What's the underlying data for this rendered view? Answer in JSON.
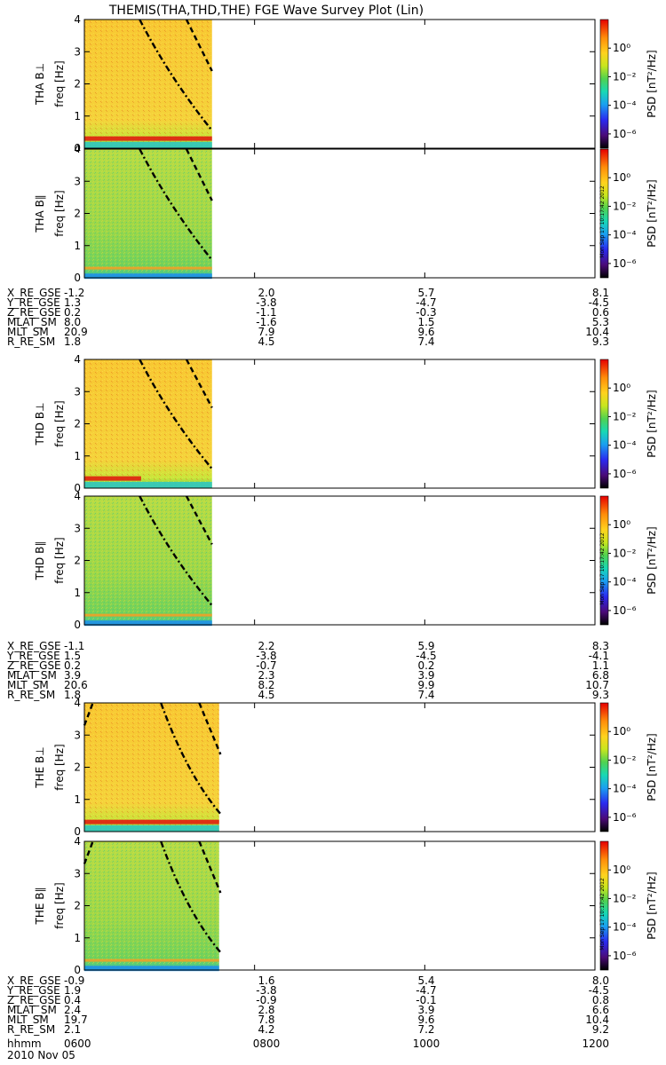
{
  "title": "THEMIS(THA,THD,THE) FGE Wave Survey Plot (Lin)",
  "stamp": "Mon Sep 17 10:17:42 2012",
  "colors": {
    "background": "#ffffff",
    "axis": "#000000",
    "curve": "#000000"
  },
  "colorbar": {
    "label": "PSD [nT²/Hz]",
    "scale": "log",
    "range": [
      1e-07,
      100
    ],
    "ticks": [
      {
        "value": 1,
        "label": "10⁰"
      },
      {
        "value": 0.01,
        "label": "10⁻²"
      },
      {
        "value": 0.0001,
        "label": "10⁻⁴"
      },
      {
        "value": 1e-06,
        "label": "10⁻⁶"
      }
    ],
    "colormap": [
      "#000000",
      "#4b0a78",
      "#2a2af0",
      "#1aa0f0",
      "#18d8b4",
      "#50d250",
      "#c8e61e",
      "#ffd21e",
      "#ff8c0a",
      "#e60000"
    ]
  },
  "chart_data": [
    {
      "type": "heatmap",
      "probe": "THA",
      "component": "perp",
      "ylabel_line1": "THA B⊥",
      "ylabel_line2": "freq [Hz]",
      "ylim": [
        0,
        4
      ],
      "yticks": [
        0,
        1,
        2,
        3,
        4
      ],
      "xlim": [
        "06:00",
        "12:00"
      ],
      "data_span": [
        "06:00",
        "07:30"
      ],
      "background_psd": "1e-1 to 1e0",
      "bands": [
        {
          "freq": 0.3,
          "psd": "1e1",
          "from": "06:00",
          "to": "07:30"
        },
        {
          "freq": 0.1,
          "psd": "1e-3",
          "from": "06:00",
          "to": "07:30"
        }
      ],
      "curves": [
        {
          "style": "dash-dot",
          "points": [
            [
              6.65,
              4.0
            ],
            [
              7.0,
              2.2
            ],
            [
              7.5,
              0.55
            ]
          ]
        },
        {
          "style": "dash",
          "points": [
            [
              7.2,
              4.0
            ],
            [
              7.5,
              2.4
            ]
          ]
        }
      ]
    },
    {
      "type": "heatmap",
      "probe": "THA",
      "component": "par",
      "ylabel_line1": "THA B∥",
      "ylabel_line2": "freq [Hz]",
      "ylim": [
        0,
        4
      ],
      "yticks": [
        0,
        1,
        2,
        3,
        4
      ],
      "xlim": [
        "06:00",
        "12:00"
      ],
      "data_span": [
        "06:00",
        "07:30"
      ],
      "background_psd": "1e-3 to 1e-2",
      "bands": [
        {
          "freq": 0.3,
          "psd": "1e-1",
          "from": "06:00",
          "to": "07:30"
        },
        {
          "freq": 0.05,
          "psd": "1e-5",
          "from": "06:00",
          "to": "07:30"
        }
      ],
      "curves": [
        {
          "style": "dash-dot",
          "points": [
            [
              6.65,
              4.0
            ],
            [
              7.0,
              2.2
            ],
            [
              7.5,
              0.55
            ]
          ]
        },
        {
          "style": "dash",
          "points": [
            [
              7.2,
              4.0
            ],
            [
              7.5,
              2.4
            ]
          ]
        }
      ]
    },
    {
      "type": "heatmap",
      "probe": "THD",
      "component": "perp",
      "ylabel_line1": "THD B⊥",
      "ylabel_line2": "freq [Hz]",
      "ylim": [
        0,
        4
      ],
      "yticks": [
        0,
        1,
        2,
        3,
        4
      ],
      "xlim": [
        "06:00",
        "12:00"
      ],
      "data_span": [
        "06:00",
        "07:30"
      ],
      "background_psd": "1e-1 to 1e0",
      "bands": [
        {
          "freq": 0.3,
          "psd": "1e1",
          "from": "06:00",
          "to": "06:40"
        },
        {
          "freq": 0.1,
          "psd": "1e-3",
          "from": "06:00",
          "to": "07:30"
        }
      ],
      "curves": [
        {
          "style": "dash-dot",
          "points": [
            [
              6.65,
              4.0
            ],
            [
              7.0,
              2.2
            ],
            [
              7.5,
              0.6
            ]
          ]
        },
        {
          "style": "dash",
          "points": [
            [
              7.2,
              4.0
            ],
            [
              7.5,
              2.5
            ]
          ]
        }
      ]
    },
    {
      "type": "heatmap",
      "probe": "THD",
      "component": "par",
      "ylabel_line1": "THD B∥",
      "ylabel_line2": "freq [Hz]",
      "ylim": [
        0,
        4
      ],
      "yticks": [
        0,
        1,
        2,
        3,
        4
      ],
      "xlim": [
        "06:00",
        "12:00"
      ],
      "data_span": [
        "06:00",
        "07:30"
      ],
      "background_psd": "1e-3 to 1e-2",
      "bands": [
        {
          "freq": 0.3,
          "psd": "1e-1",
          "from": "06:00",
          "to": "07:30"
        },
        {
          "freq": 0.05,
          "psd": "1e-5",
          "from": "06:00",
          "to": "07:30"
        }
      ],
      "curves": [
        {
          "style": "dash-dot",
          "points": [
            [
              6.65,
              4.0
            ],
            [
              7.0,
              2.2
            ],
            [
              7.5,
              0.6
            ]
          ]
        },
        {
          "style": "dash",
          "points": [
            [
              7.2,
              4.0
            ],
            [
              7.5,
              2.5
            ]
          ]
        }
      ]
    },
    {
      "type": "heatmap",
      "probe": "THE",
      "component": "perp",
      "ylabel_line1": "THE B⊥",
      "ylabel_line2": "freq [Hz]",
      "ylim": [
        0,
        4
      ],
      "yticks": [
        0,
        1,
        2,
        3,
        4
      ],
      "xlim": [
        "06:00",
        "12:00"
      ],
      "data_span": [
        "06:00",
        "07:35"
      ],
      "background_psd": "1e-1 to 1e0",
      "bands": [
        {
          "freq": 0.3,
          "psd": "1e1",
          "from": "06:00",
          "to": "07:35"
        },
        {
          "freq": 0.1,
          "psd": "1e-3",
          "from": "06:00",
          "to": "07:35"
        }
      ],
      "curves": [
        {
          "style": "dash-dot",
          "points": [
            [
              6.9,
              4.0
            ],
            [
              7.2,
              1.8
            ],
            [
              7.6,
              0.55
            ]
          ]
        },
        {
          "style": "dash",
          "points": [
            [
              7.35,
              4.0
            ],
            [
              7.6,
              2.4
            ]
          ]
        },
        {
          "style": "dash",
          "points": [
            [
              6.0,
              3.3
            ],
            [
              6.1,
              4.0
            ]
          ]
        }
      ]
    },
    {
      "type": "heatmap",
      "probe": "THE",
      "component": "par",
      "ylabel_line1": "THE B∥",
      "ylabel_line2": "freq [Hz]",
      "ylim": [
        0,
        4
      ],
      "yticks": [
        0,
        1,
        2,
        3,
        4
      ],
      "xlim": [
        "06:00",
        "12:00"
      ],
      "data_span": [
        "06:00",
        "07:35"
      ],
      "background_psd": "1e-3 to 1e-2",
      "bands": [
        {
          "freq": 0.3,
          "psd": "1e-1",
          "from": "06:00",
          "to": "07:35"
        },
        {
          "freq": 0.05,
          "psd": "1e-5",
          "from": "06:00",
          "to": "07:35"
        }
      ],
      "curves": [
        {
          "style": "dash-dot",
          "points": [
            [
              6.9,
              4.0
            ],
            [
              7.2,
              1.8
            ],
            [
              7.6,
              0.55
            ]
          ]
        },
        {
          "style": "dash",
          "points": [
            [
              7.35,
              4.0
            ],
            [
              7.6,
              2.4
            ]
          ]
        },
        {
          "style": "dash",
          "points": [
            [
              6.0,
              3.3
            ],
            [
              6.1,
              4.0
            ]
          ]
        }
      ]
    }
  ],
  "ephemeris": [
    {
      "probe": "THA",
      "rows": [
        {
          "name": "X_RE_GSE",
          "values": [
            "-1.2",
            "2.0",
            "5.7",
            "8.1"
          ]
        },
        {
          "name": "Y_RE_GSE",
          "values": [
            "1.3",
            "-3.8",
            "-4.7",
            "-4.5"
          ]
        },
        {
          "name": "Z_RE_GSE",
          "values": [
            "0.2",
            "-1.1",
            "-0.3",
            "0.6"
          ]
        },
        {
          "name": "MLAT_SM",
          "values": [
            "8.0",
            "-1.6",
            "1.5",
            "5.3"
          ]
        },
        {
          "name": "MLT_SM",
          "values": [
            "20.9",
            "7.9",
            "9.6",
            "10.4"
          ]
        },
        {
          "name": "R_RE_SM",
          "values": [
            "1.8",
            "4.5",
            "7.4",
            "9.3"
          ]
        }
      ]
    },
    {
      "probe": "THD",
      "rows": [
        {
          "name": "X_RE_GSE",
          "values": [
            "-1.1",
            "2.2",
            "5.9",
            "8.3"
          ]
        },
        {
          "name": "Y_RE_GSE",
          "values": [
            "1.5",
            "-3.8",
            "-4.5",
            "-4.1"
          ]
        },
        {
          "name": "Z_RE_GSE",
          "values": [
            "0.2",
            "-0.7",
            "0.2",
            "1.1"
          ]
        },
        {
          "name": "MLAT_SM",
          "values": [
            "3.9",
            "2.3",
            "3.9",
            "6.8"
          ]
        },
        {
          "name": "MLT_SM",
          "values": [
            "20.6",
            "8.2",
            "9.9",
            "10.7"
          ]
        },
        {
          "name": "R_RE_SM",
          "values": [
            "1.8",
            "4.5",
            "7.4",
            "9.3"
          ]
        }
      ]
    },
    {
      "probe": "THE",
      "rows": [
        {
          "name": "X_RE_GSE",
          "values": [
            "-0.9",
            "1.6",
            "5.4",
            "8.0"
          ]
        },
        {
          "name": "Y_RE_GSE",
          "values": [
            "1.9",
            "-3.8",
            "-4.7",
            "-4.5"
          ]
        },
        {
          "name": "Z_RE_GSE",
          "values": [
            "0.4",
            "-0.9",
            "-0.1",
            "0.8"
          ]
        },
        {
          "name": "MLAT_SM",
          "values": [
            "2.4",
            "2.8",
            "3.9",
            "6.6"
          ]
        },
        {
          "name": "MLT_SM",
          "values": [
            "19.7",
            "7.8",
            "9.6",
            "10.4"
          ]
        },
        {
          "name": "R_RE_SM",
          "values": [
            "2.1",
            "4.2",
            "7.2",
            "9.2"
          ]
        }
      ]
    }
  ],
  "time_axis": {
    "name": "hhmm",
    "labels": [
      "0600",
      "0800",
      "1000",
      "1200"
    ],
    "date": "2010 Nov 05"
  }
}
